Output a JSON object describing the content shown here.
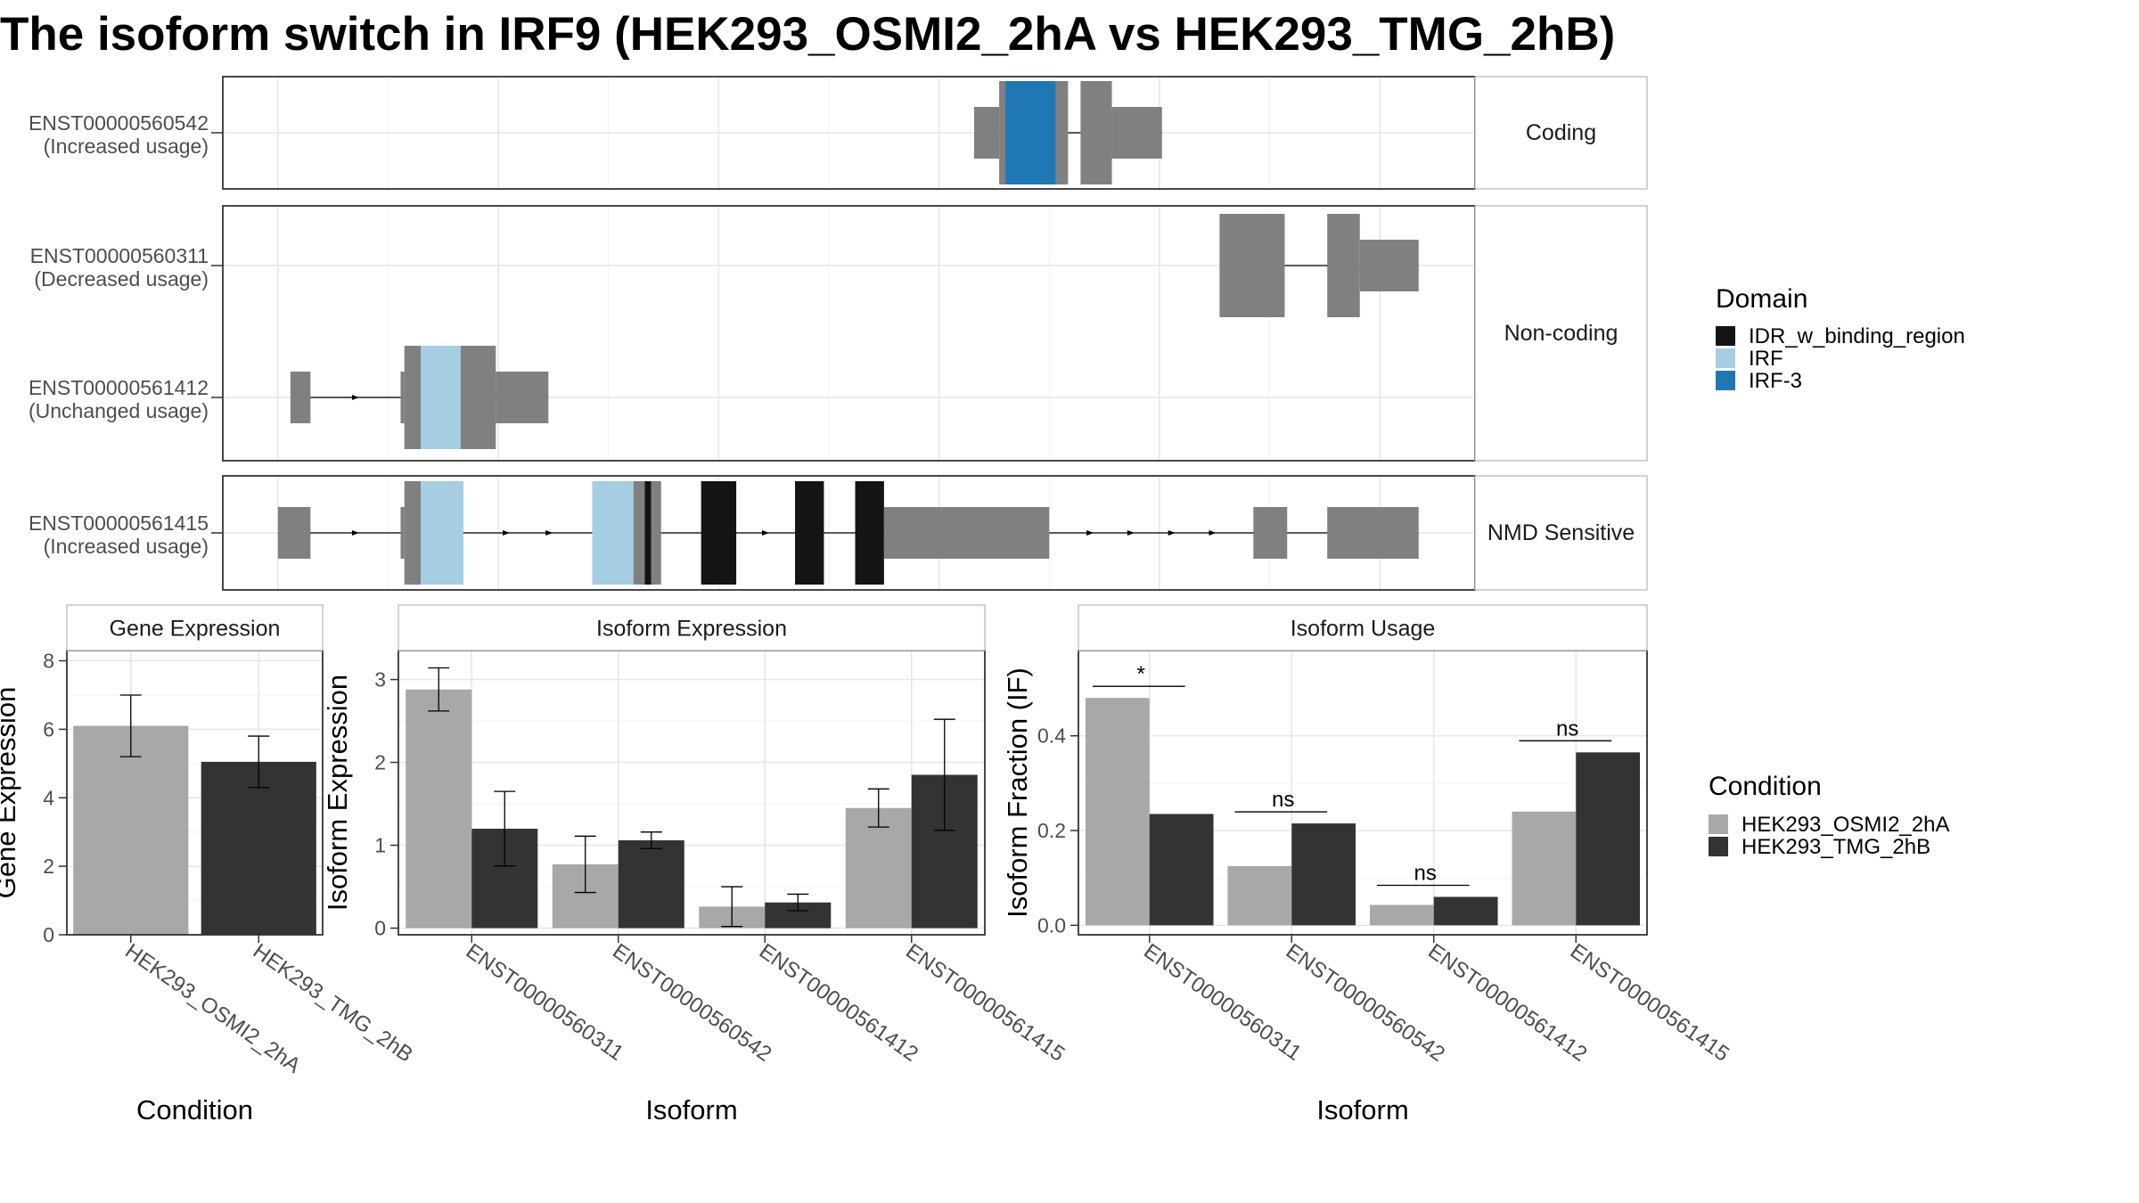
{
  "title": "The isoform switch in IRF9 (HEK293_OSMI2_2hA vs HEK293_TMG_2hB)",
  "colors": {
    "exon": "#808080",
    "IDR_w_binding_region": "#141414",
    "IRF": "#A6CEE3",
    "IRF-3": "#1F78B4",
    "cond_a": "#A8A8A8",
    "cond_b": "#333333"
  },
  "chart_data": [
    {
      "type": "gene-structure",
      "facets": [
        {
          "label": "Coding",
          "isoforms": [
            {
              "id": "ENST00000560542",
              "usage": "(Increased usage)",
              "exons": [
                {
                  "start": 0.6,
                  "end": 0.62,
                  "h": "utr"
                },
                {
                  "start": 0.62,
                  "end": 0.675,
                  "h": "cds",
                  "domain": "IRF-3",
                  "dstart": 0.625,
                  "dend": 0.665
                },
                {
                  "start": 0.685,
                  "end": 0.71,
                  "h": "cds"
                },
                {
                  "start": 0.71,
                  "end": 0.75,
                  "h": "utr"
                }
              ]
            }
          ]
        },
        {
          "label": "Non-coding",
          "isoforms": [
            {
              "id": "ENST00000560311",
              "usage": "(Decreased usage)",
              "exons": [
                {
                  "start": 0.796,
                  "end": 0.848,
                  "h": "cds"
                },
                {
                  "start": 0.882,
                  "end": 0.908,
                  "h": "cds"
                },
                {
                  "start": 0.908,
                  "end": 0.955,
                  "h": "utr"
                }
              ]
            },
            {
              "id": "ENST00000561412",
              "usage": "(Unchanged usage)",
              "exons": [
                {
                  "start": 0.054,
                  "end": 0.07,
                  "h": "utr"
                },
                {
                  "start": 0.142,
                  "end": 0.145,
                  "h": "utr"
                },
                {
                  "start": 0.145,
                  "end": 0.19,
                  "h": "cds",
                  "domain": "IRF",
                  "dstart": 0.158,
                  "dend": 0.19
                },
                {
                  "start": 0.19,
                  "end": 0.218,
                  "h": "cds"
                },
                {
                  "start": 0.218,
                  "end": 0.26,
                  "h": "utr"
                }
              ]
            }
          ]
        },
        {
          "label": "NMD Sensitive",
          "isoforms": [
            {
              "id": "ENST00000561415",
              "usage": "(Increased usage)",
              "exons": [
                {
                  "start": 0.044,
                  "end": 0.07,
                  "h": "utr"
                },
                {
                  "start": 0.142,
                  "end": 0.145,
                  "h": "utr"
                },
                {
                  "start": 0.145,
                  "end": 0.192,
                  "h": "cds",
                  "domain": "IRF",
                  "dstart": 0.158,
                  "dend": 0.192
                },
                {
                  "start": 0.295,
                  "end": 0.342,
                  "h": "cds",
                  "domain": "IRF",
                  "dstart": 0.295,
                  "dend": 0.328
                },
                {
                  "start": 0.342,
                  "end": 0.35,
                  "h": "cds",
                  "domain": "IDR_w_binding_region",
                  "dstart": 0.337,
                  "dend": 0.342
                },
                {
                  "start": 0.382,
                  "end": 0.41,
                  "h": "cds",
                  "domain": "IDR_w_binding_region",
                  "dstart": 0.382,
                  "dend": 0.41
                },
                {
                  "start": 0.457,
                  "end": 0.48,
                  "h": "cds",
                  "domain": "IDR_w_binding_region",
                  "dstart": 0.457,
                  "dend": 0.48
                },
                {
                  "start": 0.505,
                  "end": 0.528,
                  "h": "cds",
                  "domain": "IDR_w_binding_region",
                  "dstart": 0.505,
                  "dend": 0.528
                },
                {
                  "start": 0.528,
                  "end": 0.66,
                  "h": "utr"
                },
                {
                  "start": 0.823,
                  "end": 0.85,
                  "h": "utr"
                },
                {
                  "start": 0.882,
                  "end": 0.955,
                  "h": "utr"
                }
              ]
            }
          ]
        }
      ],
      "legend": {
        "title": "Domain",
        "items": [
          "IDR_w_binding_region",
          "IRF",
          "IRF-3"
        ]
      }
    },
    {
      "type": "bar",
      "facet_title": "Gene Expression",
      "xlabel": "Condition",
      "ylabel": "Gene Expression",
      "categories": [
        "HEK293_OSMI2_2hA",
        "HEK293_TMG_2hB"
      ],
      "values": [
        6.1,
        5.05
      ],
      "errors": [
        [
          5.2,
          7.0
        ],
        [
          4.3,
          5.8
        ]
      ],
      "ylim": [
        0,
        8.3
      ],
      "yticks": [
        0,
        2,
        4,
        6,
        8
      ]
    },
    {
      "type": "bar",
      "facet_title": "Isoform Expression",
      "xlabel": "Isoform",
      "ylabel": "Isoform Expression",
      "categories": [
        "ENST00000560311",
        "ENST00000560542",
        "ENST00000561412",
        "ENST00000561415"
      ],
      "series": [
        {
          "name": "HEK293_OSMI2_2hA",
          "values": [
            2.88,
            0.77,
            0.26,
            1.45
          ],
          "errors": [
            [
              2.62,
              3.14
            ],
            [
              0.43,
              1.11
            ],
            [
              0.02,
              0.5
            ],
            [
              1.22,
              1.68
            ]
          ]
        },
        {
          "name": "HEK293_TMG_2hB",
          "values": [
            1.2,
            1.06,
            0.31,
            1.85
          ],
          "errors": [
            [
              0.75,
              1.65
            ],
            [
              0.96,
              1.16
            ],
            [
              0.21,
              0.41
            ],
            [
              1.18,
              2.52
            ]
          ]
        }
      ],
      "ylim": [
        -0.08,
        3.35
      ],
      "yticks": [
        0,
        1,
        2,
        3
      ]
    },
    {
      "type": "bar",
      "facet_title": "Isoform Usage",
      "xlabel": "Isoform",
      "ylabel": "Isoform Fraction (IF)",
      "categories": [
        "ENST00000560311",
        "ENST00000560542",
        "ENST00000561412",
        "ENST00000561415"
      ],
      "series": [
        {
          "name": "HEK293_OSMI2_2hA",
          "values": [
            0.48,
            0.125,
            0.043,
            0.24
          ]
        },
        {
          "name": "HEK293_TMG_2hB",
          "values": [
            0.235,
            0.215,
            0.06,
            0.365
          ]
        }
      ],
      "significance": [
        "*",
        "ns",
        "ns",
        "ns"
      ],
      "ylim": [
        -0.02,
        0.58
      ],
      "yticks": [
        0.0,
        0.2,
        0.4
      ],
      "ytick_labels": [
        "0.0",
        "0.2",
        "0.4"
      ]
    }
  ],
  "condition_legend": {
    "title": "Condition",
    "items": [
      "HEK293_OSMI2_2hA",
      "HEK293_TMG_2hB"
    ]
  }
}
